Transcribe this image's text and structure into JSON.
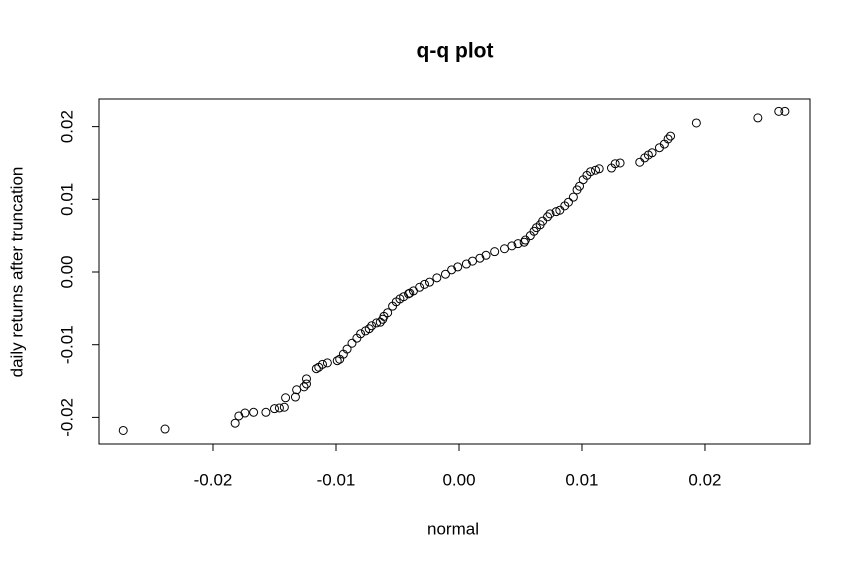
{
  "chart_data": {
    "type": "scatter",
    "title": "q-q plot",
    "x_label": "normal",
    "y_label": "daily returns after truncation",
    "x": [
      -0.0273,
      -0.0239,
      -0.0182,
      -0.0179,
      -0.0174,
      -0.0167,
      -0.0157,
      -0.015,
      -0.0146,
      -0.0142,
      -0.0141,
      -0.0133,
      -0.0132,
      -0.0126,
      -0.0124,
      -0.0124,
      -0.0116,
      -0.0114,
      -0.0111,
      -0.0107,
      -0.0099,
      -0.0097,
      -0.0094,
      -0.0091,
      -0.0087,
      -0.0083,
      -0.008,
      -0.0076,
      -0.0073,
      -0.0071,
      -0.0067,
      -0.0064,
      -0.0062,
      -0.0061,
      -0.0058,
      -0.0054,
      -0.0051,
      -0.0048,
      -0.0045,
      -0.0041,
      -0.004,
      -0.0037,
      -0.0032,
      -0.0028,
      -0.0024,
      -0.0018,
      -0.0011,
      -0.0006,
      -0.0001,
      0.0006,
      0.0011,
      0.0017,
      0.0022,
      0.0029,
      0.0037,
      0.0043,
      0.0048,
      0.0053,
      0.0054,
      0.0058,
      0.0061,
      0.0063,
      0.0066,
      0.0068,
      0.0072,
      0.0074,
      0.0079,
      0.0082,
      0.0086,
      0.0089,
      0.0093,
      0.0096,
      0.0098,
      0.0101,
      0.0104,
      0.0107,
      0.0111,
      0.0114,
      0.0124,
      0.0127,
      0.0131,
      0.0147,
      0.0151,
      0.0154,
      0.0157,
      0.0163,
      0.0167,
      0.017,
      0.0172,
      0.0193,
      0.0243,
      0.026,
      0.0265
    ],
    "y": [
      -0.0218,
      -0.0216,
      -0.0208,
      -0.0198,
      -0.0194,
      -0.0193,
      -0.0193,
      -0.0188,
      -0.0187,
      -0.0186,
      -0.0173,
      -0.0172,
      -0.0162,
      -0.0158,
      -0.0154,
      -0.0147,
      -0.0133,
      -0.0131,
      -0.0127,
      -0.0125,
      -0.0122,
      -0.012,
      -0.0113,
      -0.0106,
      -0.0098,
      -0.0091,
      -0.0085,
      -0.0081,
      -0.0078,
      -0.0074,
      -0.007,
      -0.0069,
      -0.0065,
      -0.0061,
      -0.0056,
      -0.0047,
      -0.0041,
      -0.0037,
      -0.0034,
      -0.003,
      -0.0029,
      -0.0026,
      -0.0021,
      -0.0017,
      -0.0014,
      -0.0008,
      -0.0003,
      0.0003,
      0.0007,
      0.0011,
      0.0015,
      0.0019,
      0.0023,
      0.0028,
      0.0032,
      0.0036,
      0.0039,
      0.0041,
      0.0044,
      0.005,
      0.0056,
      0.0061,
      0.0065,
      0.007,
      0.0076,
      0.008,
      0.0083,
      0.0085,
      0.0091,
      0.0096,
      0.0103,
      0.0113,
      0.0118,
      0.0127,
      0.0133,
      0.0138,
      0.014,
      0.0142,
      0.0143,
      0.0149,
      0.015,
      0.0151,
      0.0157,
      0.0161,
      0.0164,
      0.0171,
      0.0176,
      0.0183,
      0.0187,
      0.0205,
      0.0212,
      0.0221,
      0.0221
    ],
    "color": "#000000",
    "xlim": [
      -0.02927,
      0.02854
    ],
    "ylim": [
      -0.02366,
      0.0238
    ],
    "xticks": [
      {
        "value": -0.02,
        "label": "-0.02"
      },
      {
        "value": -0.01,
        "label": "-0.01"
      },
      {
        "value": 0,
        "label": "0.00"
      },
      {
        "value": 0.01,
        "label": "0.01"
      },
      {
        "value": 0.02,
        "label": "0.02"
      }
    ],
    "yticks": [
      {
        "value": -0.02,
        "label": "-0.02"
      },
      {
        "value": -0.01,
        "label": "-0.01"
      },
      {
        "value": 0,
        "label": "0.00"
      },
      {
        "value": 0.01,
        "label": "0.01"
      },
      {
        "value": 0.02,
        "label": "0.02"
      }
    ]
  }
}
